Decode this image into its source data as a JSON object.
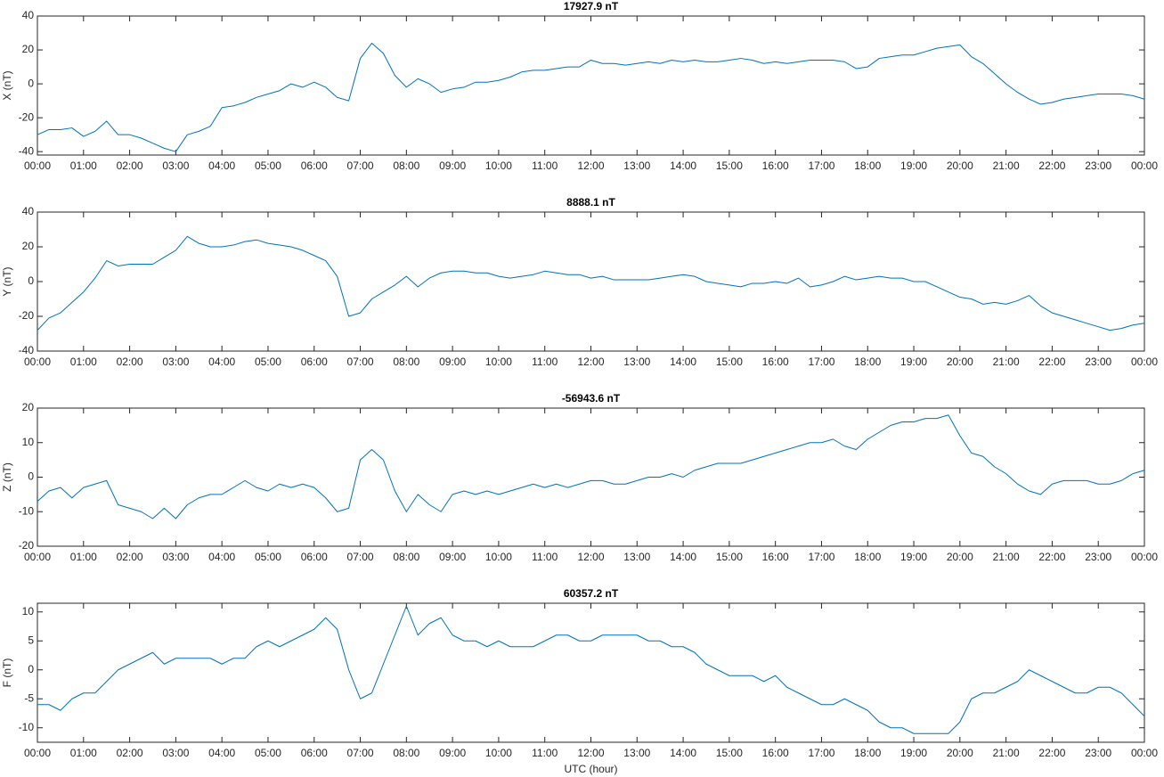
{
  "chart_data": [
    {
      "type": "line",
      "title": "17927.9 nT",
      "ylabel": "X (nT)",
      "color": "#0072bd",
      "x": [
        0,
        0.25,
        0.5,
        0.75,
        1,
        1.25,
        1.5,
        1.75,
        2,
        2.25,
        2.5,
        2.75,
        3,
        3.25,
        3.5,
        3.75,
        4,
        4.25,
        4.5,
        4.75,
        5,
        5.25,
        5.5,
        5.75,
        6,
        6.25,
        6.5,
        6.75,
        7,
        7.25,
        7.5,
        7.75,
        8,
        8.25,
        8.5,
        8.75,
        9,
        9.25,
        9.5,
        9.75,
        10,
        10.25,
        10.5,
        10.75,
        11,
        11.25,
        11.5,
        11.75,
        12,
        12.25,
        12.5,
        12.75,
        13,
        13.25,
        13.5,
        13.75,
        14,
        14.25,
        14.5,
        14.75,
        15,
        15.25,
        15.5,
        15.75,
        16,
        16.25,
        16.5,
        16.75,
        17,
        17.25,
        17.5,
        17.75,
        18,
        18.25,
        18.5,
        18.75,
        19,
        19.25,
        19.5,
        19.75,
        20,
        20.25,
        20.5,
        20.75,
        21,
        21.25,
        21.5,
        21.75,
        22,
        22.25,
        22.5,
        22.75,
        23,
        23.25,
        23.5,
        23.75,
        24
      ],
      "values": [
        -30,
        -27,
        -27,
        -26,
        -31,
        -28,
        -22,
        -30,
        -30,
        -32,
        -35,
        -38,
        -40,
        -30,
        -28,
        -25,
        -14,
        -13,
        -11,
        -8,
        -6,
        -4,
        0,
        -2,
        1,
        -2,
        -8,
        -10,
        15,
        24,
        18,
        5,
        -2,
        3,
        0,
        -5,
        -3,
        -2,
        1,
        1,
        2,
        4,
        7,
        8,
        8,
        9,
        10,
        10,
        14,
        12,
        12,
        11,
        12,
        13,
        12,
        14,
        13,
        14,
        13,
        13,
        14,
        15,
        14,
        12,
        13,
        12,
        13,
        14,
        14,
        14,
        13,
        9,
        10,
        15,
        16,
        17,
        17,
        19,
        21,
        22,
        23,
        16,
        12,
        6,
        0,
        -5,
        -9,
        -12,
        -11,
        -9,
        -8,
        -7,
        -6,
        -6,
        -6,
        -7,
        -9
      ],
      "xlim": [
        0,
        24
      ],
      "xticks": [
        {
          "value": 0,
          "label": "00:00"
        },
        {
          "value": 1,
          "label": "01:00"
        },
        {
          "value": 2,
          "label": "02:00"
        },
        {
          "value": 3,
          "label": "03:00"
        },
        {
          "value": 4,
          "label": "04:00"
        },
        {
          "value": 5,
          "label": "05:00"
        },
        {
          "value": 6,
          "label": "06:00"
        },
        {
          "value": 7,
          "label": "07:00"
        },
        {
          "value": 8,
          "label": "08:00"
        },
        {
          "value": 9,
          "label": "09:00"
        },
        {
          "value": 10,
          "label": "10:00"
        },
        {
          "value": 11,
          "label": "11:00"
        },
        {
          "value": 12,
          "label": "12:00"
        },
        {
          "value": 13,
          "label": "13:00"
        },
        {
          "value": 14,
          "label": "14:00"
        },
        {
          "value": 15,
          "label": "15:00"
        },
        {
          "value": 16,
          "label": "16:00"
        },
        {
          "value": 17,
          "label": "17:00"
        },
        {
          "value": 18,
          "label": "18:00"
        },
        {
          "value": 19,
          "label": "19:00"
        },
        {
          "value": 20,
          "label": "20:00"
        },
        {
          "value": 21,
          "label": "21:00"
        },
        {
          "value": 22,
          "label": "22:00"
        },
        {
          "value": 23,
          "label": "23:00"
        },
        {
          "value": 24,
          "label": "00:00"
        }
      ],
      "ylim": [
        -42,
        40
      ],
      "yticks": [
        -40,
        -20,
        0,
        20,
        40
      ]
    },
    {
      "type": "line",
      "title": "8888.1 nT",
      "ylabel": "Y (nT)",
      "color": "#0072bd",
      "x": [
        0,
        0.25,
        0.5,
        0.75,
        1,
        1.25,
        1.5,
        1.75,
        2,
        2.25,
        2.5,
        2.75,
        3,
        3.25,
        3.5,
        3.75,
        4,
        4.25,
        4.5,
        4.75,
        5,
        5.25,
        5.5,
        5.75,
        6,
        6.25,
        6.5,
        6.75,
        7,
        7.25,
        7.5,
        7.75,
        8,
        8.25,
        8.5,
        8.75,
        9,
        9.25,
        9.5,
        9.75,
        10,
        10.25,
        10.5,
        10.75,
        11,
        11.25,
        11.5,
        11.75,
        12,
        12.25,
        12.5,
        12.75,
        13,
        13.25,
        13.5,
        13.75,
        14,
        14.25,
        14.5,
        14.75,
        15,
        15.25,
        15.5,
        15.75,
        16,
        16.25,
        16.5,
        16.75,
        17,
        17.25,
        17.5,
        17.75,
        18,
        18.25,
        18.5,
        18.75,
        19,
        19.25,
        19.5,
        19.75,
        20,
        20.25,
        20.5,
        20.75,
        21,
        21.25,
        21.5,
        21.75,
        22,
        22.25,
        22.5,
        22.75,
        23,
        23.25,
        23.5,
        23.75,
        24
      ],
      "values": [
        -28,
        -21,
        -18,
        -12,
        -6,
        2,
        12,
        9,
        10,
        10,
        10,
        14,
        18,
        26,
        22,
        20,
        20,
        21,
        23,
        24,
        22,
        21,
        20,
        18,
        15,
        12,
        3,
        -20,
        -18,
        -10,
        -6,
        -2,
        3,
        -3,
        2,
        5,
        6,
        6,
        5,
        5,
        3,
        2,
        3,
        4,
        6,
        5,
        4,
        4,
        2,
        3,
        1,
        1,
        1,
        1,
        2,
        3,
        4,
        3,
        0,
        -1,
        -2,
        -3,
        -1,
        -1,
        0,
        -1,
        2,
        -3,
        -2,
        0,
        3,
        1,
        2,
        3,
        2,
        2,
        0,
        0,
        -3,
        -6,
        -9,
        -10,
        -13,
        -12,
        -13,
        -11,
        -8,
        -14,
        -18,
        -20,
        -22,
        -24,
        -26,
        -28,
        -27,
        -25,
        -24
      ],
      "xlim": [
        0,
        24
      ],
      "xticks": [
        {
          "value": 0,
          "label": "00:00"
        },
        {
          "value": 1,
          "label": "01:00"
        },
        {
          "value": 2,
          "label": "02:00"
        },
        {
          "value": 3,
          "label": "03:00"
        },
        {
          "value": 4,
          "label": "04:00"
        },
        {
          "value": 5,
          "label": "05:00"
        },
        {
          "value": 6,
          "label": "06:00"
        },
        {
          "value": 7,
          "label": "07:00"
        },
        {
          "value": 8,
          "label": "08:00"
        },
        {
          "value": 9,
          "label": "09:00"
        },
        {
          "value": 10,
          "label": "10:00"
        },
        {
          "value": 11,
          "label": "11:00"
        },
        {
          "value": 12,
          "label": "12:00"
        },
        {
          "value": 13,
          "label": "13:00"
        },
        {
          "value": 14,
          "label": "14:00"
        },
        {
          "value": 15,
          "label": "15:00"
        },
        {
          "value": 16,
          "label": "16:00"
        },
        {
          "value": 17,
          "label": "17:00"
        },
        {
          "value": 18,
          "label": "18:00"
        },
        {
          "value": 19,
          "label": "19:00"
        },
        {
          "value": 20,
          "label": "20:00"
        },
        {
          "value": 21,
          "label": "21:00"
        },
        {
          "value": 22,
          "label": "22:00"
        },
        {
          "value": 23,
          "label": "23:00"
        },
        {
          "value": 24,
          "label": "00:00"
        }
      ],
      "ylim": [
        -40,
        40
      ],
      "yticks": [
        -40,
        -20,
        0,
        20,
        40
      ]
    },
    {
      "type": "line",
      "title": "-56943.6 nT",
      "ylabel": "Z (nT)",
      "color": "#0072bd",
      "x": [
        0,
        0.25,
        0.5,
        0.75,
        1,
        1.25,
        1.5,
        1.75,
        2,
        2.25,
        2.5,
        2.75,
        3,
        3.25,
        3.5,
        3.75,
        4,
        4.25,
        4.5,
        4.75,
        5,
        5.25,
        5.5,
        5.75,
        6,
        6.25,
        6.5,
        6.75,
        7,
        7.25,
        7.5,
        7.75,
        8,
        8.25,
        8.5,
        8.75,
        9,
        9.25,
        9.5,
        9.75,
        10,
        10.25,
        10.5,
        10.75,
        11,
        11.25,
        11.5,
        11.75,
        12,
        12.25,
        12.5,
        12.75,
        13,
        13.25,
        13.5,
        13.75,
        14,
        14.25,
        14.5,
        14.75,
        15,
        15.25,
        15.5,
        15.75,
        16,
        16.25,
        16.5,
        16.75,
        17,
        17.25,
        17.5,
        17.75,
        18,
        18.25,
        18.5,
        18.75,
        19,
        19.25,
        19.5,
        19.75,
        20,
        20.25,
        20.5,
        20.75,
        21,
        21.25,
        21.5,
        21.75,
        22,
        22.25,
        22.5,
        22.75,
        23,
        23.25,
        23.5,
        23.75,
        24
      ],
      "values": [
        -7,
        -4,
        -3,
        -6,
        -3,
        -2,
        -1,
        -8,
        -9,
        -10,
        -12,
        -9,
        -12,
        -8,
        -6,
        -5,
        -5,
        -3,
        -1,
        -3,
        -4,
        -2,
        -3,
        -2,
        -3,
        -6,
        -10,
        -9,
        5,
        8,
        5,
        -4,
        -10,
        -5,
        -8,
        -10,
        -5,
        -4,
        -5,
        -4,
        -5,
        -4,
        -3,
        -2,
        -3,
        -2,
        -3,
        -2,
        -1,
        -1,
        -2,
        -2,
        -1,
        0,
        0,
        1,
        0,
        2,
        3,
        4,
        4,
        4,
        5,
        6,
        7,
        8,
        9,
        10,
        10,
        11,
        9,
        8,
        11,
        13,
        15,
        16,
        16,
        17,
        17,
        18,
        12,
        7,
        6,
        3,
        1,
        -2,
        -4,
        -5,
        -2,
        -1,
        -1,
        -1,
        -2,
        -2,
        -1,
        1,
        2
      ],
      "xlim": [
        0,
        24
      ],
      "xticks": [
        {
          "value": 0,
          "label": "00:00"
        },
        {
          "value": 1,
          "label": "01:00"
        },
        {
          "value": 2,
          "label": "02:00"
        },
        {
          "value": 3,
          "label": "03:00"
        },
        {
          "value": 4,
          "label": "04:00"
        },
        {
          "value": 5,
          "label": "05:00"
        },
        {
          "value": 6,
          "label": "06:00"
        },
        {
          "value": 7,
          "label": "07:00"
        },
        {
          "value": 8,
          "label": "08:00"
        },
        {
          "value": 9,
          "label": "09:00"
        },
        {
          "value": 10,
          "label": "10:00"
        },
        {
          "value": 11,
          "label": "11:00"
        },
        {
          "value": 12,
          "label": "12:00"
        },
        {
          "value": 13,
          "label": "13:00"
        },
        {
          "value": 14,
          "label": "14:00"
        },
        {
          "value": 15,
          "label": "15:00"
        },
        {
          "value": 16,
          "label": "16:00"
        },
        {
          "value": 17,
          "label": "17:00"
        },
        {
          "value": 18,
          "label": "18:00"
        },
        {
          "value": 19,
          "label": "19:00"
        },
        {
          "value": 20,
          "label": "20:00"
        },
        {
          "value": 21,
          "label": "21:00"
        },
        {
          "value": 22,
          "label": "22:00"
        },
        {
          "value": 23,
          "label": "23:00"
        },
        {
          "value": 24,
          "label": "00:00"
        }
      ],
      "ylim": [
        -20,
        20
      ],
      "yticks": [
        -20,
        -10,
        0,
        10,
        20
      ]
    },
    {
      "type": "line",
      "title": "60357.2 nT",
      "ylabel": "F (nT)",
      "xlabel": "UTC (hour)",
      "color": "#0072bd",
      "x": [
        0,
        0.25,
        0.5,
        0.75,
        1,
        1.25,
        1.5,
        1.75,
        2,
        2.25,
        2.5,
        2.75,
        3,
        3.25,
        3.5,
        3.75,
        4,
        4.25,
        4.5,
        4.75,
        5,
        5.25,
        5.5,
        5.75,
        6,
        6.25,
        6.5,
        6.75,
        7,
        7.25,
        7.5,
        7.75,
        8,
        8.25,
        8.5,
        8.75,
        9,
        9.25,
        9.5,
        9.75,
        10,
        10.25,
        10.5,
        10.75,
        11,
        11.25,
        11.5,
        11.75,
        12,
        12.25,
        12.5,
        12.75,
        13,
        13.25,
        13.5,
        13.75,
        14,
        14.25,
        14.5,
        14.75,
        15,
        15.25,
        15.5,
        15.75,
        16,
        16.25,
        16.5,
        16.75,
        17,
        17.25,
        17.5,
        17.75,
        18,
        18.25,
        18.5,
        18.75,
        19,
        19.25,
        19.5,
        19.75,
        20,
        20.25,
        20.5,
        20.75,
        21,
        21.25,
        21.5,
        21.75,
        22,
        22.25,
        22.5,
        22.75,
        23,
        23.25,
        23.5,
        23.75,
        24
      ],
      "values": [
        -6,
        -6,
        -7,
        -5,
        -4,
        -4,
        -2,
        0,
        1,
        2,
        3,
        1,
        2,
        2,
        2,
        2,
        1,
        2,
        2,
        4,
        5,
        4,
        5,
        6,
        7,
        9,
        7,
        0,
        -5,
        -4,
        1,
        6,
        11,
        6,
        8,
        9,
        6,
        5,
        5,
        4,
        5,
        4,
        4,
        4,
        5,
        6,
        6,
        5,
        5,
        6,
        6,
        6,
        6,
        5,
        5,
        4,
        4,
        3,
        1,
        0,
        -1,
        -1,
        -1,
        -2,
        -1,
        -3,
        -4,
        -5,
        -6,
        -6,
        -5,
        -6,
        -7,
        -9,
        -10,
        -10,
        -11,
        -11,
        -11,
        -11,
        -9,
        -5,
        -4,
        -4,
        -3,
        -2,
        0,
        -1,
        -2,
        -3,
        -4,
        -4,
        -3,
        -3,
        -4,
        -6,
        -8
      ],
      "xlim": [
        0,
        24
      ],
      "xticks": [
        {
          "value": 0,
          "label": "00:00"
        },
        {
          "value": 1,
          "label": "01:00"
        },
        {
          "value": 2,
          "label": "02:00"
        },
        {
          "value": 3,
          "label": "03:00"
        },
        {
          "value": 4,
          "label": "04:00"
        },
        {
          "value": 5,
          "label": "05:00"
        },
        {
          "value": 6,
          "label": "06:00"
        },
        {
          "value": 7,
          "label": "07:00"
        },
        {
          "value": 8,
          "label": "08:00"
        },
        {
          "value": 9,
          "label": "09:00"
        },
        {
          "value": 10,
          "label": "10:00"
        },
        {
          "value": 11,
          "label": "11:00"
        },
        {
          "value": 12,
          "label": "12:00"
        },
        {
          "value": 13,
          "label": "13:00"
        },
        {
          "value": 14,
          "label": "14:00"
        },
        {
          "value": 15,
          "label": "15:00"
        },
        {
          "value": 16,
          "label": "16:00"
        },
        {
          "value": 17,
          "label": "17:00"
        },
        {
          "value": 18,
          "label": "18:00"
        },
        {
          "value": 19,
          "label": "19:00"
        },
        {
          "value": 20,
          "label": "20:00"
        },
        {
          "value": 21,
          "label": "21:00"
        },
        {
          "value": 22,
          "label": "22:00"
        },
        {
          "value": 23,
          "label": "23:00"
        },
        {
          "value": 24,
          "label": "00:00"
        }
      ],
      "ylim": [
        -12.5,
        11.5
      ],
      "yticks": [
        -10,
        -5,
        0,
        5,
        10
      ]
    }
  ]
}
